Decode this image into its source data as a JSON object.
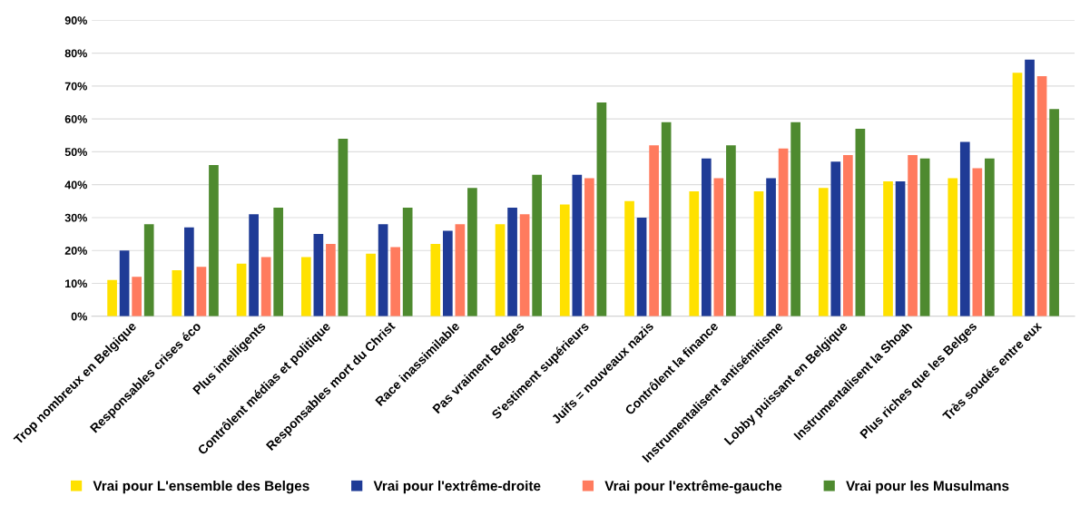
{
  "chart_data": {
    "type": "bar",
    "categories": [
      "Trop nombreux en Belgique",
      "Responsables crises éco",
      "Plus intelligents",
      "Contrôlent médias et politique",
      "Responsables mort du Christ",
      "Race inassimilable",
      "Pas vraiment Belges",
      "S'estiment supérieurs",
      "Juifs = nouveaux nazis",
      "Contrôlent la finance",
      "Instrumentalisent antisémitisme",
      "Lobby puissant en Belgique",
      "Instrumentalisent la Shoah",
      "Plus riches que les Belges",
      "Très soudés entre eux"
    ],
    "series": [
      {
        "name": "Vrai pour L'ensemble des Belges",
        "color": "#ffe100",
        "values": [
          11,
          14,
          16,
          18,
          19,
          22,
          28,
          34,
          35,
          38,
          38,
          39,
          41,
          42,
          74
        ]
      },
      {
        "name": "Vrai pour l'extrême-droite",
        "color": "#1f3b96",
        "values": [
          20,
          27,
          31,
          25,
          28,
          26,
          33,
          43,
          30,
          48,
          42,
          47,
          41,
          53,
          78
        ]
      },
      {
        "name": "Vrai pour l'extrême-gauche",
        "color": "#ff7b5e",
        "values": [
          12,
          15,
          18,
          22,
          21,
          28,
          31,
          42,
          52,
          42,
          51,
          49,
          49,
          45,
          73
        ]
      },
      {
        "name": "Vrai pour les Musulmans",
        "color": "#4e8a2f",
        "values": [
          28,
          46,
          33,
          54,
          33,
          39,
          43,
          65,
          59,
          52,
          59,
          57,
          48,
          48,
          63
        ]
      }
    ],
    "ylim": [
      0,
      90
    ],
    "yticks": [
      {
        "value": 0,
        "label": "0%"
      },
      {
        "value": 10,
        "label": "10%"
      },
      {
        "value": 20,
        "label": "20%"
      },
      {
        "value": 30,
        "label": "30%"
      },
      {
        "value": 40,
        "label": "40%"
      },
      {
        "value": 50,
        "label": "50%"
      },
      {
        "value": 60,
        "label": "60%"
      },
      {
        "value": 70,
        "label": "70%"
      },
      {
        "value": 80,
        "label": "80%"
      },
      {
        "value": 90,
        "label": "90%"
      }
    ],
    "grid": "y",
    "legend": "bottom"
  }
}
